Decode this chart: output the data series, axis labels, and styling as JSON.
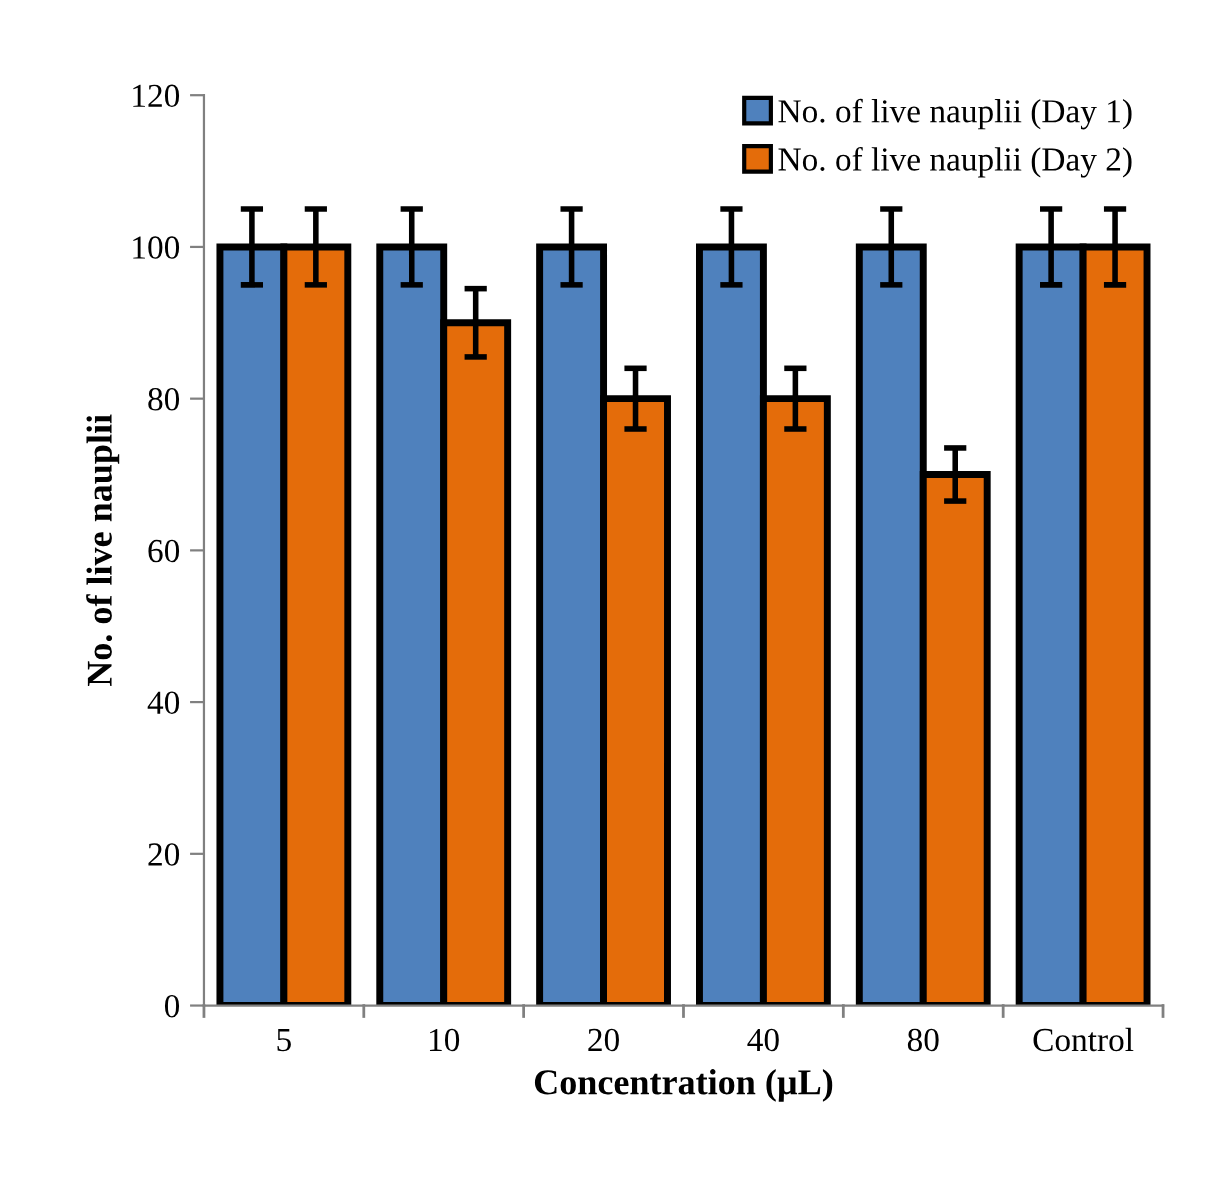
{
  "chart_data": {
    "type": "bar",
    "xlabel": "Concentration (µL)",
    "ylabel": "No. of live nauplii",
    "categories": [
      "5",
      "10",
      "20",
      "40",
      "80",
      "Control"
    ],
    "series": [
      {
        "name": "No. of live nauplii (Day 1)",
        "color": "#4f81bd",
        "values": [
          100,
          100,
          100,
          100,
          100,
          100
        ],
        "errors": [
          5,
          5,
          5,
          5,
          5,
          5
        ]
      },
      {
        "name": "No. of live nauplii (Day 2)",
        "color": "#e46c0a",
        "values": [
          100,
          90,
          80,
          80,
          70,
          100
        ],
        "errors": [
          5,
          4.5,
          4,
          4,
          3.5,
          5
        ]
      }
    ],
    "ylim": [
      0,
      120
    ],
    "yticks": [
      0,
      20,
      40,
      60,
      80,
      100,
      120
    ],
    "grid": false,
    "legend": "top right"
  }
}
